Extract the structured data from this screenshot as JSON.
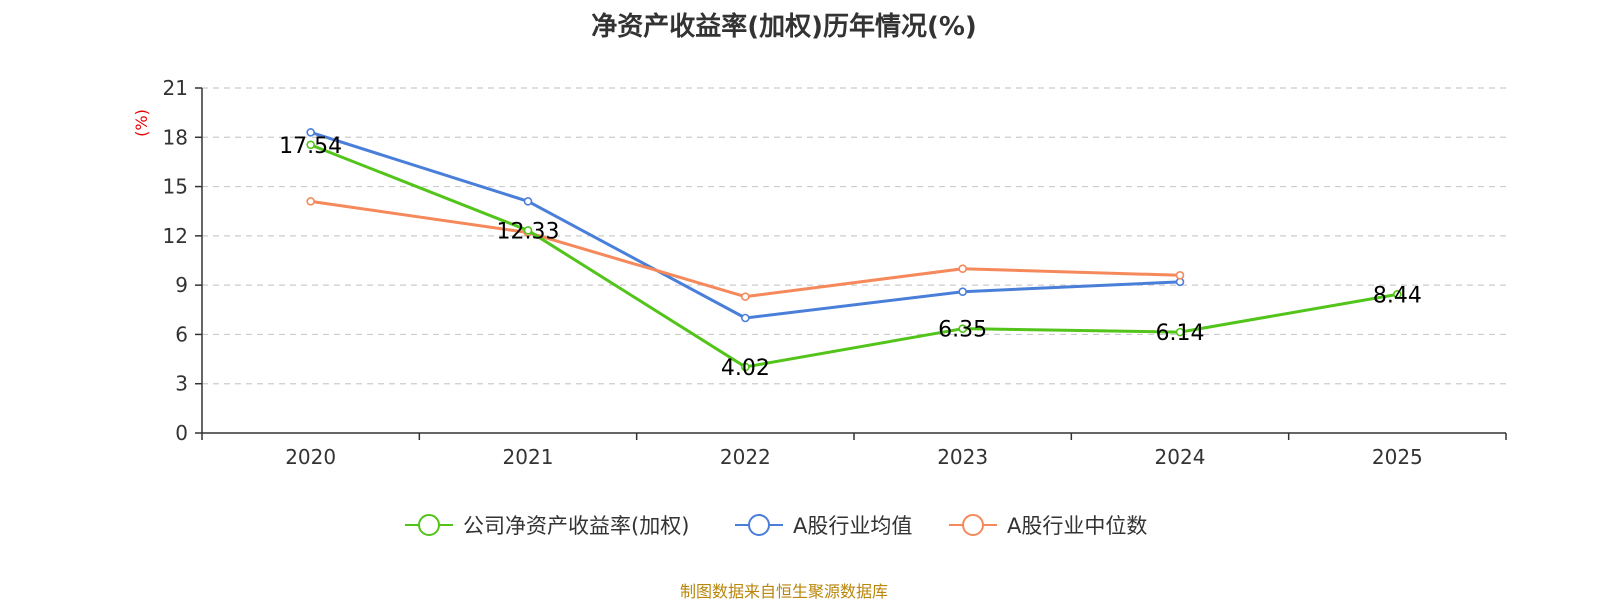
{
  "title": "净资产收益率(加权)历年情况(%)",
  "source": "制图数据来自恒生聚源数据库",
  "chart_data": {
    "type": "line",
    "title": "净资产收益率(加权)历年情况(%)",
    "ylabel": "(%)",
    "ylabel_color": "#e60000",
    "xlabel": "",
    "categories": [
      "2020",
      "2021",
      "2022",
      "2023",
      "2024",
      "2025"
    ],
    "ylim": [
      0,
      21
    ],
    "yticks": [
      0,
      3,
      6,
      9,
      12,
      15,
      18,
      21
    ],
    "grid": "horizontal dashed",
    "legend_position": "bottom",
    "series": [
      {
        "name": "公司净资产收益率(加权)",
        "color": "#52c41a",
        "values": [
          17.54,
          12.33,
          4.02,
          6.35,
          6.14,
          8.44
        ],
        "labels": [
          "17.54",
          "12.33",
          "4.02",
          "6.35",
          "6.14",
          "8.44"
        ]
      },
      {
        "name": "A股行业均值",
        "color": "#4a7fd9",
        "values": [
          18.3,
          14.1,
          7.0,
          8.6,
          9.2,
          null
        ]
      },
      {
        "name": "A股行业中位数",
        "color": "#f5895b",
        "values": [
          14.1,
          12.2,
          8.3,
          10.0,
          9.6,
          null
        ]
      }
    ]
  }
}
